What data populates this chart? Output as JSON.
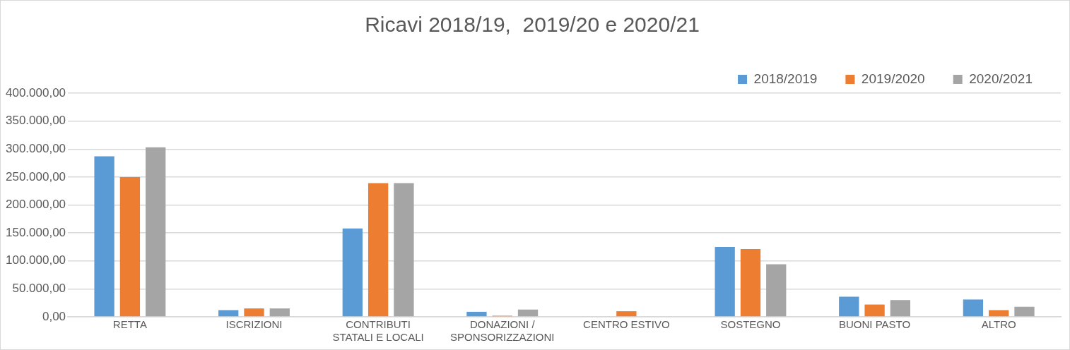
{
  "chart_data": {
    "type": "bar",
    "title": "Ricavi 2018/19,  2019/20 e 2020/21",
    "categories": [
      "RETTA",
      "ISCRIZIONI",
      "CONTRIBUTI STATALI E LOCALI",
      "DONAZIONI / SPONSORIZZAZIONI",
      "CENTRO ESTIVO",
      "SOSTEGNO",
      "BUONI PASTO",
      "ALTRO"
    ],
    "series": [
      {
        "name": "2018/2019",
        "color": "#5b9bd5",
        "values": [
          287000,
          12000,
          158000,
          9000,
          null,
          125000,
          36000,
          31000
        ]
      },
      {
        "name": "2019/2020",
        "color": "#ed7d31",
        "values": [
          250000,
          15000,
          239000,
          2000,
          10000,
          121000,
          22000,
          12000
        ]
      },
      {
        "name": "2020/2021",
        "color": "#a5a5a5",
        "values": [
          303000,
          15000,
          239000,
          13000,
          null,
          94000,
          30000,
          18000
        ]
      }
    ],
    "ylim": [
      0,
      400000
    ],
    "yticks": [
      {
        "value": 0,
        "label": "0,00"
      },
      {
        "value": 50000,
        "label": "50.000,00"
      },
      {
        "value": 100000,
        "label": "100.000,00"
      },
      {
        "value": 150000,
        "label": "150.000,00"
      },
      {
        "value": 200000,
        "label": "200.000,00"
      },
      {
        "value": 250000,
        "label": "250.000,00"
      },
      {
        "value": 300000,
        "label": "300.000,00"
      },
      {
        "value": 350000,
        "label": "350.000,00"
      },
      {
        "value": 400000,
        "label": "400.000,00"
      }
    ],
    "grid": "y",
    "legend": "top right"
  }
}
